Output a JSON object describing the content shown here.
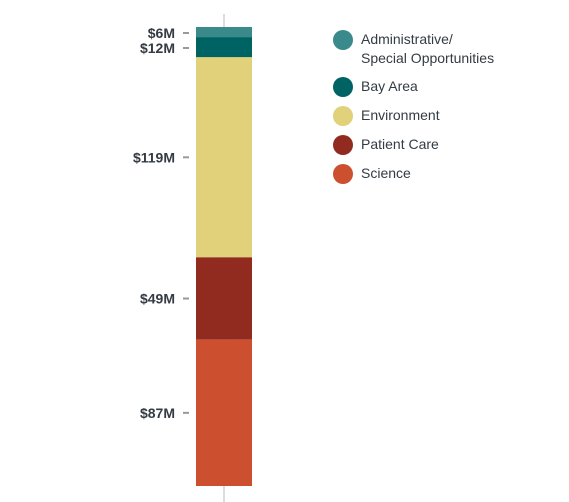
{
  "chart_data": {
    "type": "bar",
    "stacked": true,
    "categories": [
      ""
    ],
    "series": [
      {
        "name": "Administrative/\nSpecial Opportunities",
        "label": "$6M",
        "values": [
          6
        ],
        "color": "#3a8a8c"
      },
      {
        "name": "Bay Area",
        "label": "$12M",
        "values": [
          12
        ],
        "color": "#006363"
      },
      {
        "name": "Environment",
        "label": "$119M",
        "values": [
          119
        ],
        "color": "#e0d17a"
      },
      {
        "name": "Patient Care",
        "label": "$49M",
        "values": [
          49
        ],
        "color": "#922b1f"
      },
      {
        "name": "Science",
        "label": "$87M",
        "values": [
          87
        ],
        "color": "#cc4f30"
      }
    ],
    "unit": "$M",
    "legend_position": "top-right"
  },
  "colors": {
    "axis": "#dddddd",
    "tick": "#999999",
    "text": "#333b43"
  }
}
